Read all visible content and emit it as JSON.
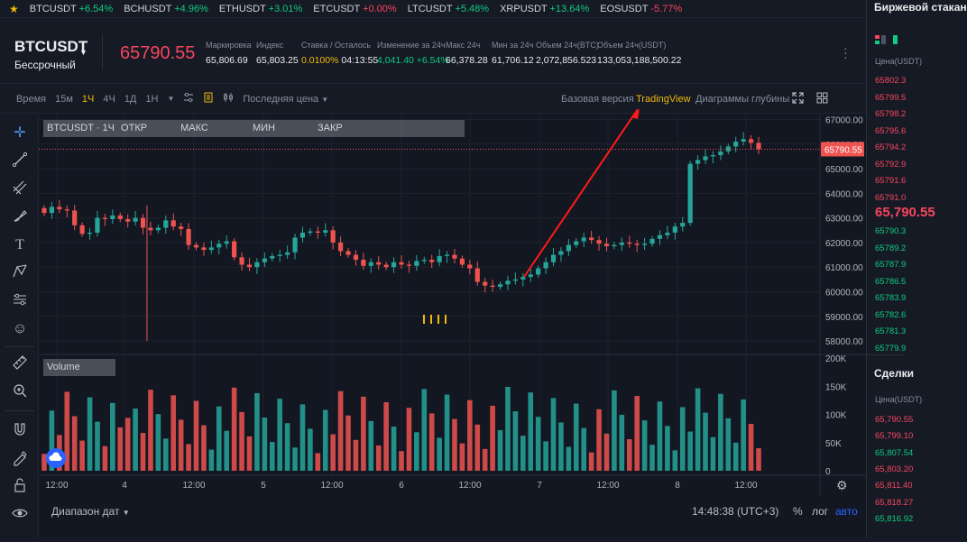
{
  "ticker": [
    {
      "symbol": "BTCUSDT",
      "change": "+6.54%",
      "dir": "up"
    },
    {
      "symbol": "BCHUSDT",
      "change": "+4.96%",
      "dir": "up"
    },
    {
      "symbol": "ETHUSDT",
      "change": "+3.01%",
      "dir": "up"
    },
    {
      "symbol": "ETCUSDT",
      "change": "+0.00%",
      "dir": "dn"
    },
    {
      "symbol": "LTCUSDT",
      "change": "+5.48%",
      "dir": "up"
    },
    {
      "symbol": "XRPUSDT",
      "change": "+13.64%",
      "dir": "up"
    },
    {
      "symbol": "EOSUSDT",
      "change": "-5.77%",
      "dir": "dn"
    }
  ],
  "header": {
    "symbol": "BTCUSDT",
    "contract": "Бессрочный",
    "last_price": "65790.55",
    "stats": [
      {
        "label": "Маркировка",
        "value": "65,806.69",
        "color": "#eaecef"
      },
      {
        "label": "Индекс",
        "value": "65,803.25",
        "color": "#eaecef"
      },
      {
        "label": "Ставка / Осталось",
        "value": "0.0100%",
        "value2": "04:13:55",
        "color": "#f0b90b"
      },
      {
        "label": "Изменение за 24ч",
        "value": "4,041.40 +6.54%",
        "color": "#0ecb81"
      },
      {
        "label": "Макс 24ч",
        "value": "66,378.28",
        "color": "#eaecef"
      },
      {
        "label": "Мин за 24ч",
        "value": "61,706.12",
        "color": "#eaecef"
      },
      {
        "label": "Объем 24ч(BTC)",
        "value": "2,072,856.523",
        "color": "#eaecef"
      },
      {
        "label": "Объем 24ч(USDT)",
        "value": "133,053,188,500.22",
        "color": "#eaecef"
      }
    ]
  },
  "toolbar": {
    "time_label": "Время",
    "intervals": [
      "15м",
      "1Ч",
      "4Ч",
      "1Д",
      "1Н"
    ],
    "active_interval": "1Ч",
    "price_type": "Последняя цена",
    "view_basic": "Базовая версия",
    "view_tradingview": "TradingView",
    "view_depth": "Диаграммы глубины"
  },
  "legend": {
    "title": "BTCUSDT · 1Ч",
    "open_label": "ОТКР",
    "high_label": "МАКС",
    "low_label": "МИН",
    "close_label": "ЗАКР",
    "volume_label": "Volume"
  },
  "bottom": {
    "date_range": "Диапазон дат",
    "clock": "14:48:38 (UTC+3)",
    "percent": "%",
    "log": "лог",
    "auto": "авто"
  },
  "right_panel": {
    "orderbook_title": "Биржевой стакан",
    "price_col": "Цена(USDT)",
    "asks": [
      "65802.3",
      "65799.5",
      "65798.2",
      "65795.6",
      "65794.2",
      "65792.9",
      "65791.6",
      "65791.0"
    ],
    "last": "65,790.55",
    "bids": [
      "65790.3",
      "65789.2",
      "65787.9",
      "65786.5",
      "65783.9",
      "65782.6",
      "65781.3",
      "65779.9"
    ],
    "trades_title": "Сделки",
    "trades_price_col": "Цена(USDT)",
    "trades": [
      {
        "p": "65,790.55",
        "dir": "dn"
      },
      {
        "p": "65,799.10",
        "dir": "dn"
      },
      {
        "p": "65,807.54",
        "dir": "up"
      },
      {
        "p": "65,803.20",
        "dir": "dn"
      },
      {
        "p": "65,811.40",
        "dir": "dn"
      },
      {
        "p": "65,818.27",
        "dir": "dn"
      },
      {
        "p": "65,816.92",
        "dir": "up"
      }
    ]
  },
  "colors": {
    "up": "#26a69a",
    "down": "#ef5350",
    "accent": "#f0b90b",
    "bg": "#131722"
  },
  "chart_data": {
    "type": "candlestick",
    "title": "",
    "x_ticks": [
      "12:00",
      "4",
      "12:00",
      "5",
      "12:00",
      "6",
      "12:00",
      "7",
      "12:00",
      "8",
      "12:00"
    ],
    "price_ticks": [
      "67000.00",
      "66000.00",
      "65000.00",
      "64000.00",
      "63000.00",
      "62000.00",
      "61000.00",
      "60000.00",
      "59000.00",
      "58000.00"
    ],
    "volume_ticks": [
      "200K",
      "150K",
      "100K",
      "50K",
      "0"
    ],
    "ylim": [
      57600,
      67200
    ],
    "volume_ylim": [
      0,
      200000
    ],
    "last_price_label": "65790.55",
    "closes": [
      63200,
      63450,
      63350,
      63300,
      62700,
      62350,
      62400,
      63000,
      62950,
      63100,
      62950,
      62850,
      63000,
      62600,
      62500,
      62600,
      62900,
      62650,
      62550,
      61900,
      61800,
      61700,
      61800,
      61950,
      62050,
      61400,
      61100,
      61000,
      61200,
      61350,
      61450,
      61500,
      61600,
      62200,
      62400,
      62450,
      62400,
      62500,
      62000,
      61650,
      61500,
      61300,
      61050,
      61200,
      61100,
      61000,
      61200,
      61100,
      61050,
      61250,
      61300,
      61200,
      61450,
      61500,
      61350,
      61100,
      60950,
      60400,
      60250,
      60200,
      60300,
      60450,
      60500,
      60600,
      60700,
      60950,
      61200,
      61500,
      61650,
      61900,
      62050,
      62200,
      62100,
      61950,
      61850,
      61900,
      62000,
      61950,
      61900,
      61950,
      62150,
      62300,
      62400,
      62650,
      62800,
      65200,
      65350,
      65500,
      65550,
      65700,
      65900,
      66100,
      66200,
      66050,
      65790
    ]
  }
}
